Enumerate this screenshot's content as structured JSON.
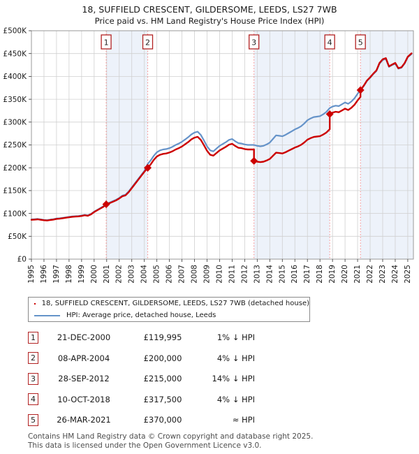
{
  "title": {
    "line1": "18, SUFFIELD CRESCENT, GILDERSOME, LEEDS, LS27 7WB",
    "line2": "Price paid vs. HM Land Registry's House Price Index (HPI)"
  },
  "legend": {
    "entries": [
      {
        "label": "18, SUFFIELD CRESCENT, GILDERSOME, LEEDS, LS27 7WB (detached house)",
        "color": "#cc0000"
      },
      {
        "label": "HPI: Average price, detached house, Leeds",
        "color": "#6593c9"
      }
    ]
  },
  "table": {
    "rows": [
      {
        "num": "1",
        "date": "21-DEC-2000",
        "price": "£119,995",
        "vs_hpi": "1% ↓ HPI"
      },
      {
        "num": "2",
        "date": "08-APR-2004",
        "price": "£200,000",
        "vs_hpi": "4% ↓ HPI"
      },
      {
        "num": "3",
        "date": "28-SEP-2012",
        "price": "£215,000",
        "vs_hpi": "14% ↓ HPI"
      },
      {
        "num": "4",
        "date": "10-OCT-2018",
        "price": "£317,500",
        "vs_hpi": "4% ↓ HPI"
      },
      {
        "num": "5",
        "date": "26-MAR-2021",
        "price": "£370,000",
        "vs_hpi": "≈ HPI"
      }
    ]
  },
  "footer": {
    "line1": "Contains HM Land Registry data © Crown copyright and database right 2025.",
    "line2": "This data is licensed under the Open Government Licence v3.0."
  },
  "chart_data": {
    "type": "line",
    "title": "Price paid vs. HM Land Registry's House Price Index (HPI)",
    "units": "x = decimal year, y = price in GBP thousands",
    "xlim": [
      1995,
      2025.45
    ],
    "ylim": [
      0,
      500
    ],
    "xticks": [
      1995,
      1996,
      1997,
      1998,
      1999,
      2000,
      2001,
      2002,
      2003,
      2004,
      2005,
      2006,
      2007,
      2008,
      2009,
      2010,
      2011,
      2012,
      2013,
      2014,
      2015,
      2016,
      2017,
      2018,
      2019,
      2020,
      2021,
      2022,
      2023,
      2024,
      2025
    ],
    "ytick_values": [
      0,
      50,
      100,
      150,
      200,
      250,
      300,
      350,
      400,
      450,
      500
    ],
    "ytick_labels": [
      "£0",
      "£50K",
      "£100K",
      "£150K",
      "£200K",
      "£250K",
      "£300K",
      "£350K",
      "£400K",
      "£450K",
      "£500K"
    ],
    "grid": true,
    "legend_position": "below",
    "colors": {
      "band": "#edf2fa",
      "grid": "#d0d0d0",
      "border": "#999999",
      "sale_line": "#f88585",
      "flag_border": "#b22222",
      "flag_text": "#222222",
      "tick_text": "#1a1a1a"
    },
    "bands": [
      [
        2000.96,
        2004.27
      ],
      [
        2012.74,
        2018.78
      ],
      [
        2021.23,
        2025.45
      ]
    ],
    "sale_lines": [
      2000.96,
      2004.27,
      2012.74,
      2018.78,
      2021.23
    ],
    "sale_flags": [
      "1",
      "2",
      "3",
      "4",
      "5"
    ],
    "markers": [
      {
        "flag": "1",
        "x": 2000.96,
        "y": 120.0
      },
      {
        "flag": "2",
        "x": 2004.27,
        "y": 200.0
      },
      {
        "flag": "3",
        "x": 2012.74,
        "y": 215.0
      },
      {
        "flag": "4",
        "x": 2018.78,
        "y": 317.5
      },
      {
        "flag": "5",
        "x": 2021.23,
        "y": 370.0
      }
    ],
    "series": [
      {
        "name": "HPI: Average price, detached house, Leeds",
        "color": "#6593c9",
        "width": 2.2,
        "points": [
          [
            1995.0,
            87
          ],
          [
            1995.25,
            87.5
          ],
          [
            1995.5,
            88
          ],
          [
            1995.75,
            87
          ],
          [
            1996.0,
            86
          ],
          [
            1996.25,
            85.5
          ],
          [
            1996.5,
            86.5
          ],
          [
            1996.75,
            87.5
          ],
          [
            1997.0,
            89
          ],
          [
            1997.25,
            89.5
          ],
          [
            1997.5,
            90.5
          ],
          [
            1997.75,
            91.5
          ],
          [
            1998.0,
            92.5
          ],
          [
            1998.25,
            93.5
          ],
          [
            1998.5,
            94
          ],
          [
            1998.75,
            94.5
          ],
          [
            1999.0,
            95.5
          ],
          [
            1999.25,
            97
          ],
          [
            1999.5,
            96
          ],
          [
            1999.75,
            99
          ],
          [
            2000.0,
            104
          ],
          [
            2000.25,
            108
          ],
          [
            2000.5,
            112
          ],
          [
            2000.75,
            116
          ],
          [
            2000.96,
            121.2
          ],
          [
            2001.25,
            124
          ],
          [
            2001.5,
            127
          ],
          [
            2001.75,
            130
          ],
          [
            2002.0,
            134
          ],
          [
            2002.25,
            139
          ],
          [
            2002.5,
            141
          ],
          [
            2002.75,
            148
          ],
          [
            2003.0,
            157
          ],
          [
            2003.25,
            166
          ],
          [
            2003.5,
            175
          ],
          [
            2003.75,
            184
          ],
          [
            2004.0,
            193
          ],
          [
            2004.27,
            208.3
          ],
          [
            2004.5,
            216
          ],
          [
            2004.75,
            226
          ],
          [
            2005.0,
            234
          ],
          [
            2005.25,
            238
          ],
          [
            2005.5,
            240
          ],
          [
            2005.75,
            241
          ],
          [
            2006.0,
            243
          ],
          [
            2006.25,
            246
          ],
          [
            2006.5,
            250
          ],
          [
            2006.75,
            253
          ],
          [
            2007.0,
            257
          ],
          [
            2007.25,
            262
          ],
          [
            2007.5,
            267
          ],
          [
            2007.75,
            273
          ],
          [
            2008.0,
            277
          ],
          [
            2008.25,
            279
          ],
          [
            2008.5,
            272
          ],
          [
            2008.75,
            260
          ],
          [
            2009.0,
            247
          ],
          [
            2009.25,
            238
          ],
          [
            2009.5,
            236
          ],
          [
            2009.75,
            242
          ],
          [
            2010.0,
            248
          ],
          [
            2010.25,
            252
          ],
          [
            2010.5,
            256
          ],
          [
            2010.75,
            261
          ],
          [
            2011.0,
            263
          ],
          [
            2011.25,
            258
          ],
          [
            2011.5,
            254
          ],
          [
            2011.75,
            253
          ],
          [
            2012.0,
            251
          ],
          [
            2012.25,
            250
          ],
          [
            2012.5,
            250
          ],
          [
            2012.74,
            250
          ],
          [
            2013.0,
            248
          ],
          [
            2013.25,
            247
          ],
          [
            2013.5,
            248
          ],
          [
            2013.75,
            251
          ],
          [
            2014.0,
            255
          ],
          [
            2014.25,
            263
          ],
          [
            2014.5,
            271
          ],
          [
            2014.75,
            270
          ],
          [
            2015.0,
            269
          ],
          [
            2015.25,
            272
          ],
          [
            2015.5,
            276
          ],
          [
            2015.75,
            280
          ],
          [
            2016.0,
            284
          ],
          [
            2016.25,
            287
          ],
          [
            2016.5,
            291
          ],
          [
            2016.75,
            297
          ],
          [
            2017.0,
            304
          ],
          [
            2017.25,
            308
          ],
          [
            2017.5,
            311
          ],
          [
            2017.75,
            312
          ],
          [
            2018.0,
            313
          ],
          [
            2018.25,
            317
          ],
          [
            2018.5,
            322
          ],
          [
            2018.78,
            330.7
          ],
          [
            2019.0,
            334
          ],
          [
            2019.25,
            336
          ],
          [
            2019.5,
            335
          ],
          [
            2019.75,
            339
          ],
          [
            2020.0,
            343
          ],
          [
            2020.25,
            340
          ],
          [
            2020.5,
            345
          ],
          [
            2020.75,
            352
          ],
          [
            2021.0,
            362
          ],
          [
            2021.23,
            370
          ],
          [
            2021.5,
            379
          ],
          [
            2021.75,
            390
          ],
          [
            2022.0,
            397
          ],
          [
            2022.25,
            405
          ],
          [
            2022.5,
            412
          ],
          [
            2022.75,
            428
          ],
          [
            2023.0,
            436
          ],
          [
            2023.25,
            438
          ],
          [
            2023.5,
            421
          ],
          [
            2023.75,
            425
          ],
          [
            2024.0,
            428
          ],
          [
            2024.25,
            417
          ],
          [
            2024.5,
            419
          ],
          [
            2024.75,
            428
          ],
          [
            2025.0,
            442
          ],
          [
            2025.3,
            449
          ]
        ]
      },
      {
        "name": "18, SUFFIELD CRESCENT, GILDERSOME, LEEDS, LS27 7WB (detached house)",
        "color": "#cc0000",
        "width": 2.4,
        "points": [
          [
            1995.0,
            86.1
          ],
          [
            1995.25,
            86.6
          ],
          [
            1995.5,
            87.1
          ],
          [
            1995.75,
            86.1
          ],
          [
            1996.0,
            85.1
          ],
          [
            1996.25,
            84.6
          ],
          [
            1996.5,
            85.6
          ],
          [
            1996.75,
            86.6
          ],
          [
            1997.0,
            88.1
          ],
          [
            1997.25,
            88.6
          ],
          [
            1997.5,
            89.6
          ],
          [
            1997.75,
            90.6
          ],
          [
            1998.0,
            91.6
          ],
          [
            1998.25,
            92.6
          ],
          [
            1998.5,
            93.1
          ],
          [
            1998.75,
            93.6
          ],
          [
            1999.0,
            94.5
          ],
          [
            1999.25,
            96
          ],
          [
            1999.5,
            95
          ],
          [
            1999.75,
            98
          ],
          [
            2000.0,
            103
          ],
          [
            2000.25,
            107
          ],
          [
            2000.5,
            110.9
          ],
          [
            2000.75,
            114.8
          ],
          [
            2000.96,
            120
          ],
          [
            2001.25,
            122.8
          ],
          [
            2001.5,
            125.7
          ],
          [
            2001.75,
            128.7
          ],
          [
            2002.0,
            132.7
          ],
          [
            2002.25,
            137.6
          ],
          [
            2002.5,
            139.6
          ],
          [
            2002.75,
            146.5
          ],
          [
            2003.0,
            155.4
          ],
          [
            2003.25,
            164.3
          ],
          [
            2003.5,
            173.3
          ],
          [
            2003.75,
            182.2
          ],
          [
            2004.0,
            191.1
          ],
          [
            2004.27,
            200
          ],
          [
            2004.5,
            207.4
          ],
          [
            2004.75,
            217
          ],
          [
            2005.0,
            224.6
          ],
          [
            2005.25,
            228.5
          ],
          [
            2005.5,
            230.4
          ],
          [
            2005.75,
            231.4
          ],
          [
            2006.0,
            233.3
          ],
          [
            2006.25,
            236.2
          ],
          [
            2006.5,
            240
          ],
          [
            2006.75,
            242.9
          ],
          [
            2007.0,
            246.7
          ],
          [
            2007.25,
            251.5
          ],
          [
            2007.5,
            256.3
          ],
          [
            2007.75,
            262.1
          ],
          [
            2008.0,
            265.9
          ],
          [
            2008.25,
            267.8
          ],
          [
            2008.5,
            261.1
          ],
          [
            2008.75,
            249.6
          ],
          [
            2009.0,
            237.1
          ],
          [
            2009.25,
            228.5
          ],
          [
            2009.5,
            226.6
          ],
          [
            2009.75,
            232.3
          ],
          [
            2010.0,
            238.1
          ],
          [
            2010.25,
            241.9
          ],
          [
            2010.5,
            245.8
          ],
          [
            2010.75,
            250.6
          ],
          [
            2011.0,
            252.5
          ],
          [
            2011.25,
            247.7
          ],
          [
            2011.5,
            243.8
          ],
          [
            2011.75,
            242.9
          ],
          [
            2012.0,
            241
          ],
          [
            2012.25,
            240
          ],
          [
            2012.5,
            240
          ],
          [
            2012.74,
            240
          ],
          [
            2012.74,
            215
          ],
          [
            2013.0,
            213.3
          ],
          [
            2013.25,
            212.4
          ],
          [
            2013.5,
            213.3
          ],
          [
            2013.75,
            215.9
          ],
          [
            2014.0,
            219.3
          ],
          [
            2014.25,
            226.2
          ],
          [
            2014.5,
            233.1
          ],
          [
            2014.75,
            232.2
          ],
          [
            2015.0,
            231.3
          ],
          [
            2015.25,
            233.9
          ],
          [
            2015.5,
            237.4
          ],
          [
            2015.75,
            240.8
          ],
          [
            2016.0,
            244.2
          ],
          [
            2016.25,
            246.8
          ],
          [
            2016.5,
            250.3
          ],
          [
            2016.75,
            255.4
          ],
          [
            2017.0,
            261.4
          ],
          [
            2017.25,
            264.9
          ],
          [
            2017.5,
            267.5
          ],
          [
            2017.75,
            268.3
          ],
          [
            2018.0,
            269.2
          ],
          [
            2018.25,
            272.6
          ],
          [
            2018.5,
            276.9
          ],
          [
            2018.78,
            284.4
          ],
          [
            2018.78,
            317.5
          ],
          [
            2019.0,
            320.6
          ],
          [
            2019.25,
            322.6
          ],
          [
            2019.5,
            321.6
          ],
          [
            2019.75,
            325.4
          ],
          [
            2020.0,
            329.3
          ],
          [
            2020.25,
            326.4
          ],
          [
            2020.5,
            331.2
          ],
          [
            2020.75,
            337.9
          ],
          [
            2021.0,
            347.5
          ],
          [
            2021.23,
            355.2
          ],
          [
            2021.23,
            370
          ],
          [
            2021.5,
            380
          ],
          [
            2021.75,
            391
          ],
          [
            2022.0,
            398
          ],
          [
            2022.25,
            406
          ],
          [
            2022.5,
            413
          ],
          [
            2022.75,
            429.5
          ],
          [
            2023.0,
            437.5
          ],
          [
            2023.25,
            440
          ],
          [
            2023.5,
            422
          ],
          [
            2023.75,
            426
          ],
          [
            2024.0,
            429.5
          ],
          [
            2024.25,
            418
          ],
          [
            2024.5,
            420
          ],
          [
            2024.75,
            429
          ],
          [
            2025.0,
            443
          ],
          [
            2025.3,
            450.5
          ]
        ]
      }
    ]
  }
}
